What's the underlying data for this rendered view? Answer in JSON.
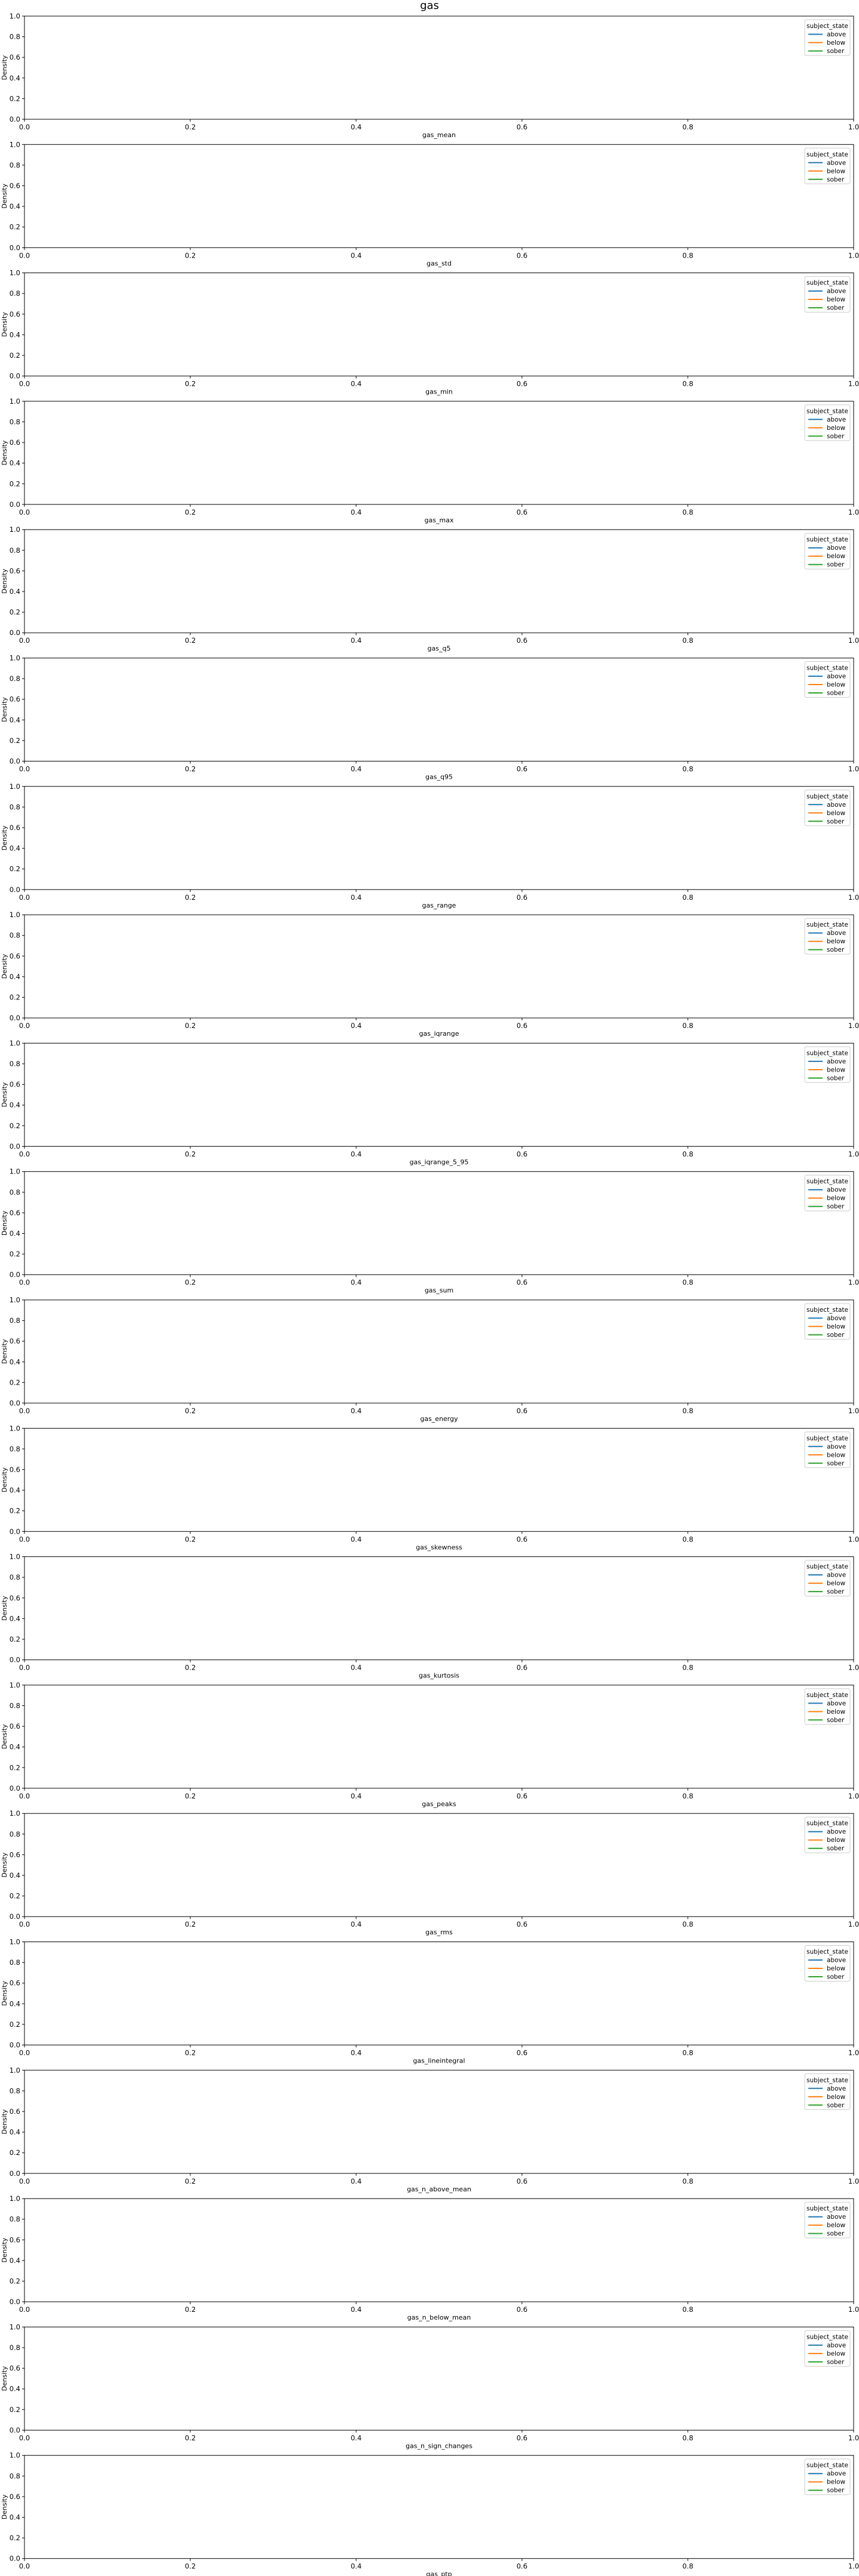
{
  "figure": {
    "title": "gas"
  },
  "colors": {
    "axis": "#000000",
    "legend_frame": "#cccccc",
    "above": "#1f77b4",
    "below": "#ff7f0e",
    "sober": "#2ca02c"
  },
  "chart_data": [
    {
      "type": "line",
      "xlabel": "gas_mean",
      "ylabel": "Density",
      "xlim": [
        0,
        1
      ],
      "ylim": [
        0,
        1
      ],
      "xticks": [
        "0.0",
        "0.2",
        "0.4",
        "0.6",
        "0.8",
        "1.0"
      ],
      "yticks": [
        "0.0",
        "0.2",
        "0.4",
        "0.6",
        "0.8",
        "1.0"
      ],
      "legend": {
        "title": "subject_state",
        "placement": "upper-right",
        "entries": [
          "above",
          "below",
          "sober"
        ]
      },
      "series": [
        {
          "name": "above",
          "values": []
        },
        {
          "name": "below",
          "values": []
        },
        {
          "name": "sober",
          "values": []
        }
      ],
      "grid": false
    },
    {
      "type": "line",
      "xlabel": "gas_std",
      "ylabel": "Density",
      "xlim": [
        0,
        1
      ],
      "ylim": [
        0,
        1
      ],
      "xticks": [
        "0.0",
        "0.2",
        "0.4",
        "0.6",
        "0.8",
        "1.0"
      ],
      "yticks": [
        "0.0",
        "0.2",
        "0.4",
        "0.6",
        "0.8",
        "1.0"
      ],
      "legend": {
        "title": "subject_state",
        "placement": "upper-right",
        "entries": [
          "above",
          "below",
          "sober"
        ]
      },
      "series": [
        {
          "name": "above",
          "values": []
        },
        {
          "name": "below",
          "values": []
        },
        {
          "name": "sober",
          "values": []
        }
      ],
      "grid": false
    },
    {
      "type": "line",
      "xlabel": "gas_min",
      "ylabel": "Density",
      "xlim": [
        0,
        1
      ],
      "ylim": [
        0,
        1
      ],
      "xticks": [
        "0.0",
        "0.2",
        "0.4",
        "0.6",
        "0.8",
        "1.0"
      ],
      "yticks": [
        "0.0",
        "0.2",
        "0.4",
        "0.6",
        "0.8",
        "1.0"
      ],
      "legend": {
        "title": "subject_state",
        "placement": "upper-right",
        "entries": [
          "above",
          "below",
          "sober"
        ]
      },
      "series": [
        {
          "name": "above",
          "values": []
        },
        {
          "name": "below",
          "values": []
        },
        {
          "name": "sober",
          "values": []
        }
      ],
      "grid": false
    },
    {
      "type": "line",
      "xlabel": "gas_max",
      "ylabel": "Density",
      "xlim": [
        0,
        1
      ],
      "ylim": [
        0,
        1
      ],
      "xticks": [
        "0.0",
        "0.2",
        "0.4",
        "0.6",
        "0.8",
        "1.0"
      ],
      "yticks": [
        "0.0",
        "0.2",
        "0.4",
        "0.6",
        "0.8",
        "1.0"
      ],
      "legend": {
        "title": "subject_state",
        "placement": "upper-right",
        "entries": [
          "above",
          "below",
          "sober"
        ]
      },
      "series": [
        {
          "name": "above",
          "values": []
        },
        {
          "name": "below",
          "values": []
        },
        {
          "name": "sober",
          "values": []
        }
      ],
      "grid": false
    },
    {
      "type": "line",
      "xlabel": "gas_q5",
      "ylabel": "Density",
      "xlim": [
        0,
        1
      ],
      "ylim": [
        0,
        1
      ],
      "xticks": [
        "0.0",
        "0.2",
        "0.4",
        "0.6",
        "0.8",
        "1.0"
      ],
      "yticks": [
        "0.0",
        "0.2",
        "0.4",
        "0.6",
        "0.8",
        "1.0"
      ],
      "legend": {
        "title": "subject_state",
        "placement": "upper-right",
        "entries": [
          "above",
          "below",
          "sober"
        ]
      },
      "series": [
        {
          "name": "above",
          "values": []
        },
        {
          "name": "below",
          "values": []
        },
        {
          "name": "sober",
          "values": []
        }
      ],
      "grid": false
    },
    {
      "type": "line",
      "xlabel": "gas_q95",
      "ylabel": "Density",
      "xlim": [
        0,
        1
      ],
      "ylim": [
        0,
        1
      ],
      "xticks": [
        "0.0",
        "0.2",
        "0.4",
        "0.6",
        "0.8",
        "1.0"
      ],
      "yticks": [
        "0.0",
        "0.2",
        "0.4",
        "0.6",
        "0.8",
        "1.0"
      ],
      "legend": {
        "title": "subject_state",
        "placement": "upper-right",
        "entries": [
          "above",
          "below",
          "sober"
        ]
      },
      "series": [
        {
          "name": "above",
          "values": []
        },
        {
          "name": "below",
          "values": []
        },
        {
          "name": "sober",
          "values": []
        }
      ],
      "grid": false
    },
    {
      "type": "line",
      "xlabel": "gas_range",
      "ylabel": "Density",
      "xlim": [
        0,
        1
      ],
      "ylim": [
        0,
        1
      ],
      "xticks": [
        "0.0",
        "0.2",
        "0.4",
        "0.6",
        "0.8",
        "1.0"
      ],
      "yticks": [
        "0.0",
        "0.2",
        "0.4",
        "0.6",
        "0.8",
        "1.0"
      ],
      "legend": {
        "title": "subject_state",
        "placement": "upper-right",
        "entries": [
          "above",
          "below",
          "sober"
        ]
      },
      "series": [
        {
          "name": "above",
          "values": []
        },
        {
          "name": "below",
          "values": []
        },
        {
          "name": "sober",
          "values": []
        }
      ],
      "grid": false
    },
    {
      "type": "line",
      "xlabel": "gas_iqrange",
      "ylabel": "Density",
      "xlim": [
        0,
        1
      ],
      "ylim": [
        0,
        1
      ],
      "xticks": [
        "0.0",
        "0.2",
        "0.4",
        "0.6",
        "0.8",
        "1.0"
      ],
      "yticks": [
        "0.0",
        "0.2",
        "0.4",
        "0.6",
        "0.8",
        "1.0"
      ],
      "legend": {
        "title": "subject_state",
        "placement": "upper-right",
        "entries": [
          "above",
          "below",
          "sober"
        ]
      },
      "series": [
        {
          "name": "above",
          "values": []
        },
        {
          "name": "below",
          "values": []
        },
        {
          "name": "sober",
          "values": []
        }
      ],
      "grid": false
    },
    {
      "type": "line",
      "xlabel": "gas_iqrange_5_95",
      "ylabel": "Density",
      "xlim": [
        0,
        1
      ],
      "ylim": [
        0,
        1
      ],
      "xticks": [
        "0.0",
        "0.2",
        "0.4",
        "0.6",
        "0.8",
        "1.0"
      ],
      "yticks": [
        "0.0",
        "0.2",
        "0.4",
        "0.6",
        "0.8",
        "1.0"
      ],
      "legend": {
        "title": "subject_state",
        "placement": "upper-right",
        "entries": [
          "above",
          "below",
          "sober"
        ]
      },
      "series": [
        {
          "name": "above",
          "values": []
        },
        {
          "name": "below",
          "values": []
        },
        {
          "name": "sober",
          "values": []
        }
      ],
      "grid": false
    },
    {
      "type": "line",
      "xlabel": "gas_sum",
      "ylabel": "Density",
      "xlim": [
        0,
        1
      ],
      "ylim": [
        0,
        1
      ],
      "xticks": [
        "0.0",
        "0.2",
        "0.4",
        "0.6",
        "0.8",
        "1.0"
      ],
      "yticks": [
        "0.0",
        "0.2",
        "0.4",
        "0.6",
        "0.8",
        "1.0"
      ],
      "legend": {
        "title": "subject_state",
        "placement": "upper-right",
        "entries": [
          "above",
          "below",
          "sober"
        ]
      },
      "series": [
        {
          "name": "above",
          "values": []
        },
        {
          "name": "below",
          "values": []
        },
        {
          "name": "sober",
          "values": []
        }
      ],
      "grid": false
    },
    {
      "type": "line",
      "xlabel": "gas_energy",
      "ylabel": "Density",
      "xlim": [
        0,
        1
      ],
      "ylim": [
        0,
        1
      ],
      "xticks": [
        "0.0",
        "0.2",
        "0.4",
        "0.6",
        "0.8",
        "1.0"
      ],
      "yticks": [
        "0.0",
        "0.2",
        "0.4",
        "0.6",
        "0.8",
        "1.0"
      ],
      "legend": {
        "title": "subject_state",
        "placement": "upper-right",
        "entries": [
          "above",
          "below",
          "sober"
        ]
      },
      "series": [
        {
          "name": "above",
          "values": []
        },
        {
          "name": "below",
          "values": []
        },
        {
          "name": "sober",
          "values": []
        }
      ],
      "grid": false
    },
    {
      "type": "line",
      "xlabel": "gas_skewness",
      "ylabel": "Density",
      "xlim": [
        0,
        1
      ],
      "ylim": [
        0,
        1
      ],
      "xticks": [
        "0.0",
        "0.2",
        "0.4",
        "0.6",
        "0.8",
        "1.0"
      ],
      "yticks": [
        "0.0",
        "0.2",
        "0.4",
        "0.6",
        "0.8",
        "1.0"
      ],
      "legend": {
        "title": "subject_state",
        "placement": "upper-right",
        "entries": [
          "above",
          "below",
          "sober"
        ]
      },
      "series": [
        {
          "name": "above",
          "values": []
        },
        {
          "name": "below",
          "values": []
        },
        {
          "name": "sober",
          "values": []
        }
      ],
      "grid": false
    },
    {
      "type": "line",
      "xlabel": "gas_kurtosis",
      "ylabel": "Density",
      "xlim": [
        0,
        1
      ],
      "ylim": [
        0,
        1
      ],
      "xticks": [
        "0.0",
        "0.2",
        "0.4",
        "0.6",
        "0.8",
        "1.0"
      ],
      "yticks": [
        "0.0",
        "0.2",
        "0.4",
        "0.6",
        "0.8",
        "1.0"
      ],
      "legend": {
        "title": "subject_state",
        "placement": "upper-right",
        "entries": [
          "above",
          "below",
          "sober"
        ]
      },
      "series": [
        {
          "name": "above",
          "values": []
        },
        {
          "name": "below",
          "values": []
        },
        {
          "name": "sober",
          "values": []
        }
      ],
      "grid": false
    },
    {
      "type": "line",
      "xlabel": "gas_peaks",
      "ylabel": "Density",
      "xlim": [
        0,
        1
      ],
      "ylim": [
        0,
        1
      ],
      "xticks": [
        "0.0",
        "0.2",
        "0.4",
        "0.6",
        "0.8",
        "1.0"
      ],
      "yticks": [
        "0.0",
        "0.2",
        "0.4",
        "0.6",
        "0.8",
        "1.0"
      ],
      "legend": {
        "title": "subject_state",
        "placement": "upper-right",
        "entries": [
          "above",
          "below",
          "sober"
        ]
      },
      "series": [
        {
          "name": "above",
          "values": []
        },
        {
          "name": "below",
          "values": []
        },
        {
          "name": "sober",
          "values": []
        }
      ],
      "grid": false
    },
    {
      "type": "line",
      "xlabel": "gas_rms",
      "ylabel": "Density",
      "xlim": [
        0,
        1
      ],
      "ylim": [
        0,
        1
      ],
      "xticks": [
        "0.0",
        "0.2",
        "0.4",
        "0.6",
        "0.8",
        "1.0"
      ],
      "yticks": [
        "0.0",
        "0.2",
        "0.4",
        "0.6",
        "0.8",
        "1.0"
      ],
      "legend": {
        "title": "subject_state",
        "placement": "upper-right",
        "entries": [
          "above",
          "below",
          "sober"
        ]
      },
      "series": [
        {
          "name": "above",
          "values": []
        },
        {
          "name": "below",
          "values": []
        },
        {
          "name": "sober",
          "values": []
        }
      ],
      "grid": false
    },
    {
      "type": "line",
      "xlabel": "gas_lineintegral",
      "ylabel": "Density",
      "xlim": [
        0,
        1
      ],
      "ylim": [
        0,
        1
      ],
      "xticks": [
        "0.0",
        "0.2",
        "0.4",
        "0.6",
        "0.8",
        "1.0"
      ],
      "yticks": [
        "0.0",
        "0.2",
        "0.4",
        "0.6",
        "0.8",
        "1.0"
      ],
      "legend": {
        "title": "subject_state",
        "placement": "upper-right",
        "entries": [
          "above",
          "below",
          "sober"
        ]
      },
      "series": [
        {
          "name": "above",
          "values": []
        },
        {
          "name": "below",
          "values": []
        },
        {
          "name": "sober",
          "values": []
        }
      ],
      "grid": false
    },
    {
      "type": "line",
      "xlabel": "gas_n_above_mean",
      "ylabel": "Density",
      "xlim": [
        0,
        1
      ],
      "ylim": [
        0,
        1
      ],
      "xticks": [
        "0.0",
        "0.2",
        "0.4",
        "0.6",
        "0.8",
        "1.0"
      ],
      "yticks": [
        "0.0",
        "0.2",
        "0.4",
        "0.6",
        "0.8",
        "1.0"
      ],
      "legend": {
        "title": "subject_state",
        "placement": "upper-right",
        "entries": [
          "above",
          "below",
          "sober"
        ]
      },
      "series": [
        {
          "name": "above",
          "values": []
        },
        {
          "name": "below",
          "values": []
        },
        {
          "name": "sober",
          "values": []
        }
      ],
      "grid": false
    },
    {
      "type": "line",
      "xlabel": "gas_n_below_mean",
      "ylabel": "Density",
      "xlim": [
        0,
        1
      ],
      "ylim": [
        0,
        1
      ],
      "xticks": [
        "0.0",
        "0.2",
        "0.4",
        "0.6",
        "0.8",
        "1.0"
      ],
      "yticks": [
        "0.0",
        "0.2",
        "0.4",
        "0.6",
        "0.8",
        "1.0"
      ],
      "legend": {
        "title": "subject_state",
        "placement": "upper-right",
        "entries": [
          "above",
          "below",
          "sober"
        ]
      },
      "series": [
        {
          "name": "above",
          "values": []
        },
        {
          "name": "below",
          "values": []
        },
        {
          "name": "sober",
          "values": []
        }
      ],
      "grid": false
    },
    {
      "type": "line",
      "xlabel": "gas_n_sign_changes",
      "ylabel": "Density",
      "xlim": [
        0,
        1
      ],
      "ylim": [
        0,
        1
      ],
      "xticks": [
        "0.0",
        "0.2",
        "0.4",
        "0.6",
        "0.8",
        "1.0"
      ],
      "yticks": [
        "0.0",
        "0.2",
        "0.4",
        "0.6",
        "0.8",
        "1.0"
      ],
      "legend": {
        "title": "subject_state",
        "placement": "upper-right",
        "entries": [
          "above",
          "below",
          "sober"
        ]
      },
      "series": [
        {
          "name": "above",
          "values": []
        },
        {
          "name": "below",
          "values": []
        },
        {
          "name": "sober",
          "values": []
        }
      ],
      "grid": false
    },
    {
      "type": "line",
      "xlabel": "gas_ptp",
      "ylabel": "Density",
      "xlim": [
        0,
        1
      ],
      "ylim": [
        0,
        1
      ],
      "xticks": [
        "0.0",
        "0.2",
        "0.4",
        "0.6",
        "0.8",
        "1.0"
      ],
      "yticks": [
        "0.0",
        "0.2",
        "0.4",
        "0.6",
        "0.8",
        "1.0"
      ],
      "legend": {
        "title": "subject_state",
        "placement": "upper-right",
        "entries": [
          "above",
          "below",
          "sober"
        ]
      },
      "series": [
        {
          "name": "above",
          "values": []
        },
        {
          "name": "below",
          "values": []
        },
        {
          "name": "sober",
          "values": []
        }
      ],
      "grid": false
    }
  ]
}
